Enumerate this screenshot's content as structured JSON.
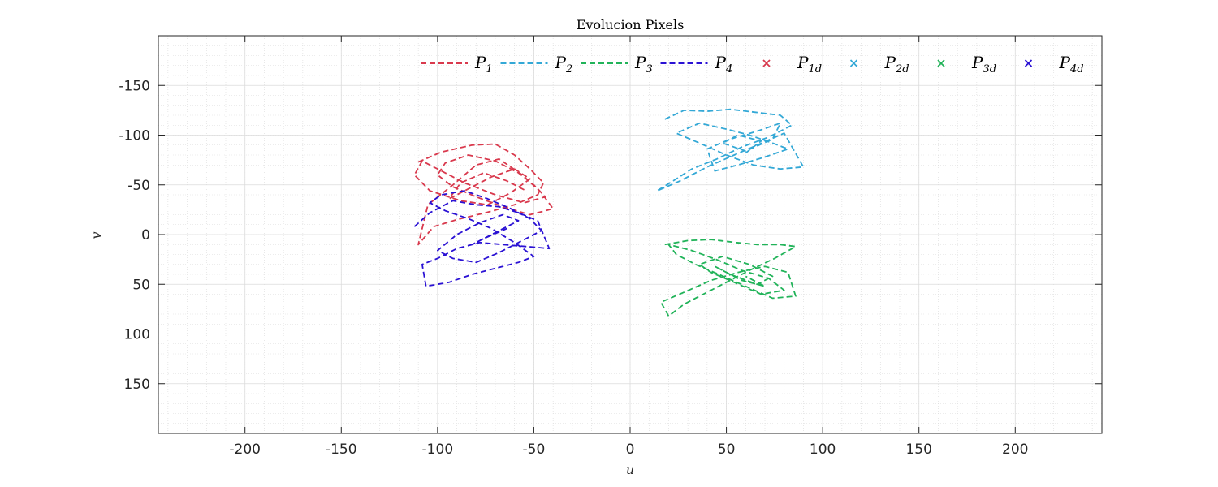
{
  "chart_data": {
    "type": "line",
    "title": "Evolucion Pixels",
    "xlabel": "u",
    "ylabel": "v",
    "xlim": [
      -245,
      245
    ],
    "ylim": [
      -200,
      200
    ],
    "y_reversed": true,
    "x_ticks": [
      -200,
      -150,
      -100,
      -50,
      0,
      50,
      100,
      150,
      200
    ],
    "x_tick_labels": [
      "-200",
      "-150",
      "-100",
      "-50",
      "0",
      "50",
      "100",
      "150",
      "200"
    ],
    "y_ticks": [
      -150,
      -100,
      -50,
      0,
      50,
      100,
      150
    ],
    "y_tick_labels": [
      "-150",
      "-100",
      "-50",
      "0",
      "50",
      "100",
      "150"
    ],
    "grid": true,
    "minor_grid": true,
    "legend_placement": "top",
    "series": [
      {
        "name": "P",
        "sub": "1",
        "color": "#d9394d",
        "style": "dashed",
        "x": [
          -110,
          -98,
          -82,
          -70,
          -60,
          -52,
          -45,
          -48,
          -60,
          -75,
          -90,
          -102,
          -110,
          -105,
          -92,
          -80,
          -68,
          -56,
          -46,
          -40,
          -52,
          -66,
          -80,
          -92,
          -100,
          -96,
          -84,
          -70,
          -58,
          -50,
          -44,
          -55,
          -70,
          -86,
          -98,
          -108,
          -112,
          -104,
          -88,
          -74,
          -62,
          -52,
          -60,
          -72,
          -84,
          -94,
          -88,
          -76,
          -64,
          -54
        ],
        "y": [
          -73,
          -83,
          -90,
          -91,
          -80,
          -66,
          -52,
          -40,
          -30,
          -22,
          -15,
          -8,
          10,
          -30,
          -50,
          -70,
          -76,
          -60,
          -42,
          -26,
          -20,
          -28,
          -38,
          -48,
          -60,
          -72,
          -80,
          -74,
          -62,
          -50,
          -38,
          -32,
          -40,
          -52,
          -64,
          -74,
          -60,
          -44,
          -34,
          -30,
          -42,
          -56,
          -66,
          -58,
          -46,
          -36,
          -52,
          -62,
          -54,
          -44
        ]
      },
      {
        "name": "P",
        "sub": "2",
        "color": "#33a8d6",
        "style": "dashed",
        "x": [
          18,
          28,
          40,
          52,
          65,
          78,
          84,
          72,
          58,
          45,
          32,
          24,
          14,
          26,
          40,
          54,
          66,
          80,
          90,
          78,
          64,
          50,
          36,
          24,
          36,
          50,
          62,
          74,
          82,
          70,
          56,
          44,
          40,
          52,
          66,
          78,
          74,
          60,
          48,
          56,
          68,
          60
        ],
        "y": [
          -116,
          -125,
          -124,
          -126,
          -123,
          -120,
          -110,
          -98,
          -88,
          -76,
          -66,
          -56,
          -44,
          -54,
          -68,
          -80,
          -90,
          -102,
          -68,
          -66,
          -70,
          -80,
          -92,
          -102,
          -112,
          -106,
          -100,
          -92,
          -86,
          -78,
          -70,
          -64,
          -86,
          -96,
          -104,
          -112,
          -96,
          -84,
          -92,
          -100,
          -94,
          -82
        ]
      },
      {
        "name": "P",
        "sub": "3",
        "color": "#21b359",
        "style": "dashed",
        "x": [
          18,
          30,
          42,
          55,
          66,
          78,
          86,
          75,
          62,
          50,
          38,
          28,
          20,
          16,
          28,
          42,
          56,
          70,
          82,
          86,
          74,
          60,
          46,
          34,
          24,
          20,
          32,
          46,
          58,
          72,
          80,
          68,
          54,
          42,
          36,
          48,
          62,
          74,
          66,
          52,
          44,
          58,
          70,
          60
        ],
        "y": [
          10,
          6,
          5,
          8,
          10,
          10,
          12,
          24,
          36,
          48,
          60,
          70,
          82,
          68,
          58,
          46,
          38,
          32,
          38,
          62,
          64,
          52,
          40,
          30,
          20,
          10,
          16,
          26,
          36,
          44,
          56,
          60,
          48,
          38,
          30,
          22,
          30,
          42,
          50,
          40,
          32,
          46,
          52,
          42
        ]
      },
      {
        "name": "P",
        "sub": "4",
        "color": "#2a11d4",
        "style": "dashed",
        "x": [
          -112,
          -104,
          -92,
          -80,
          -68,
          -58,
          -48,
          -42,
          -54,
          -66,
          -78,
          -90,
          -100,
          -108,
          -106,
          -94,
          -82,
          -70,
          -58,
          -50,
          -60,
          -72,
          -84,
          -96,
          -104,
          -98,
          -86,
          -74,
          -62,
          -52,
          -46,
          -56,
          -68,
          -80,
          -92,
          -100,
          -90,
          -78,
          -66,
          -58,
          -70,
          -82,
          -76,
          -64
        ],
        "y": [
          -8,
          -22,
          -34,
          -30,
          -28,
          -22,
          -14,
          14,
          12,
          10,
          8,
          14,
          24,
          30,
          52,
          48,
          40,
          34,
          28,
          22,
          8,
          -6,
          -16,
          -24,
          -32,
          -40,
          -44,
          -36,
          -26,
          -16,
          -4,
          6,
          18,
          28,
          24,
          16,
          0,
          -12,
          -20,
          -14,
          -2,
          10,
          4,
          -6
        ]
      }
    ],
    "desired_points": [
      {
        "name": "P",
        "sub": "1d",
        "color": "#d9394d",
        "marker": "x"
      },
      {
        "name": "P",
        "sub": "2d",
        "color": "#33a8d6",
        "marker": "x"
      },
      {
        "name": "P",
        "sub": "3d",
        "color": "#21b359",
        "marker": "x"
      },
      {
        "name": "P",
        "sub": "4d",
        "color": "#2a11d4",
        "marker": "x"
      }
    ]
  }
}
